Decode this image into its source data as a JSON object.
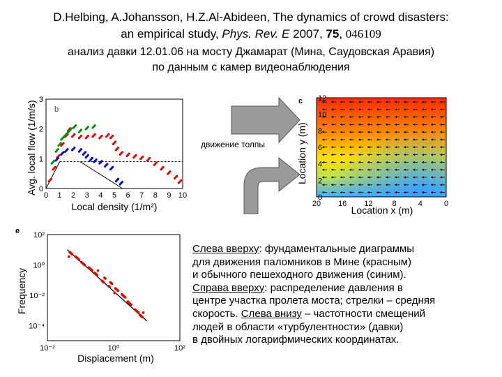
{
  "header": {
    "line1": "D.Helbing, A.Johansson, H.Z.Al-Abideen, The dynamics of crowd disasters:",
    "line2_a": "an empirical study, ",
    "line2_journal": "Phys. Rev. E",
    "line2_year": " 2007, ",
    "line2_vol": "75",
    "line2_sep": ", ",
    "line2_num": "046109",
    "line3": "анализ давки 12.01.06 на мосту Джамарат (Мина, Саудовская Аравия)",
    "line4": "по данным с камер видеонаблюдения"
  },
  "arrow_label": "движение толпы",
  "caption": [
    {
      "u": "Слева вверху",
      "t": ": фундаментальные диаграммы"
    },
    {
      "t": "для движения паломников в Мине (красным)"
    },
    {
      "t": "и обычного пешеходного движения (синим)."
    },
    {
      "u": "Справа вверху",
      "t": ": распределение давления в"
    },
    {
      "t": "центре участка пролета моста; стрелки – средняя"
    },
    {
      "t": "скорость. "
    },
    {
      "u": "Слева внизу",
      "t": " – частотности смещений"
    },
    {
      "t": "людей в области «турбулентности» (давки)"
    },
    {
      "t": "в двойных логарифмических координатах."
    }
  ],
  "chart_data": [
    {
      "type": "scatter",
      "panel_letter": "b",
      "xlabel": "Local density (1/m²)",
      "ylabel": "Avg. local flow (1/m/s)",
      "xlim": [
        0,
        10
      ],
      "ylim": [
        0,
        3
      ],
      "xticks": [
        "0",
        "1",
        "2",
        "3",
        "4",
        "5",
        "6",
        "7",
        "8",
        "9",
        "10"
      ],
      "yticks": [
        "0",
        "1",
        "2",
        "3"
      ],
      "reference_line_y": 0.9,
      "series": [
        {
          "color": "#e00000",
          "points": [
            [
              0.3,
              0.3
            ],
            [
              0.6,
              0.7
            ],
            [
              0.9,
              1.1
            ],
            [
              1.2,
              1.5
            ],
            [
              1.5,
              1.8
            ],
            [
              1.7,
              2.0
            ],
            [
              2.0,
              1.8
            ],
            [
              2.5,
              1.75
            ],
            [
              3.0,
              1.75
            ],
            [
              3.5,
              1.8
            ],
            [
              4.0,
              1.75
            ],
            [
              4.5,
              1.8
            ],
            [
              4.8,
              1.75
            ],
            [
              5.0,
              1.55
            ],
            [
              5.2,
              1.35
            ],
            [
              5.5,
              1.2
            ],
            [
              6.0,
              1.15
            ],
            [
              6.5,
              1.1
            ],
            [
              7.0,
              1.05
            ],
            [
              7.5,
              1.0
            ],
            [
              8.0,
              0.85
            ],
            [
              8.5,
              0.7
            ],
            [
              9.0,
              0.55
            ],
            [
              9.5,
              0.4
            ],
            [
              9.8,
              0.25
            ]
          ]
        },
        {
          "color": "#009000",
          "points": [
            [
              0.5,
              0.9
            ],
            [
              0.8,
              1.3
            ],
            [
              1.0,
              1.5
            ],
            [
              1.2,
              1.7
            ],
            [
              1.4,
              1.8
            ],
            [
              1.6,
              1.9
            ],
            [
              1.8,
              2.0
            ],
            [
              2.1,
              2.1
            ],
            [
              2.5,
              1.95
            ],
            [
              3.0,
              2.05
            ],
            [
              3.5,
              2.1
            ]
          ]
        },
        {
          "color": "#0000d0",
          "points": [
            [
              0.8,
              1.0
            ],
            [
              1.2,
              1.2
            ],
            [
              1.5,
              1.3
            ],
            [
              2.0,
              1.35
            ],
            [
              2.5,
              1.3
            ],
            [
              2.8,
              1.2
            ],
            [
              3.0,
              1.1
            ],
            [
              3.3,
              1.0
            ],
            [
              3.6,
              0.95
            ],
            [
              4.0,
              0.9
            ],
            [
              4.4,
              0.8
            ],
            [
              4.8,
              0.7
            ],
            [
              5.2,
              0.3
            ],
            [
              5.5,
              0.2
            ]
          ]
        }
      ]
    },
    {
      "type": "heatmap",
      "panel_letter": "c",
      "xlabel": "Location x (m)",
      "ylabel": "Location y (m)",
      "xlim": [
        20,
        0
      ],
      "ylim": [
        0,
        12
      ],
      "xticks": [
        "20",
        "16",
        "12",
        "8",
        "4",
        "0"
      ],
      "yticks": [
        "0",
        "2",
        "4",
        "6",
        "8",
        "10",
        "12"
      ],
      "vector_field": "arrows pointing left across the field"
    },
    {
      "type": "scatter",
      "panel_letter": "e",
      "xlabel": "Displacement (m)",
      "ylabel": "Frequency",
      "xscale": "log",
      "yscale": "log",
      "xlim": [
        0.01,
        100
      ],
      "ylim": [
        1e-05,
        100
      ],
      "xticks": [
        "10⁻²",
        "10⁰",
        "10²"
      ],
      "yticks": [
        "10²",
        "10⁰",
        "10⁻²",
        "10⁻⁴"
      ],
      "series": [
        {
          "color": "#e00000",
          "points": [
            [
              0.05,
              5
            ],
            [
              0.08,
              2.5
            ],
            [
              0.12,
              1.2
            ],
            [
              0.2,
              0.6
            ],
            [
              0.3,
              0.3
            ],
            [
              0.5,
              0.1
            ],
            [
              0.8,
              0.05
            ],
            [
              1.2,
              0.02
            ],
            [
              2,
              0.008
            ],
            [
              3,
              0.003
            ],
            [
              5,
              0.001
            ],
            [
              7,
              0.0005
            ]
          ]
        }
      ],
      "fit_line": [
        [
          0.04,
          10
        ],
        [
          10,
          0.0002
        ]
      ]
    }
  ]
}
